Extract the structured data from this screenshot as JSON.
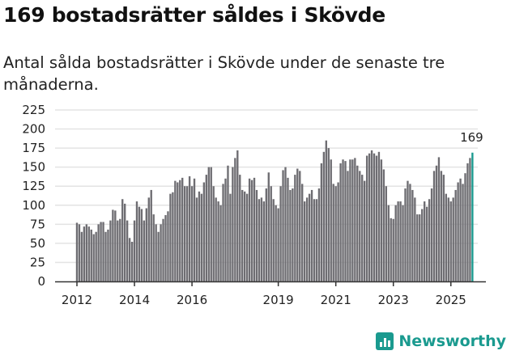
{
  "header": {
    "title": "169 bostadsrätter såldes i Skövde",
    "subtitle": "Antal sålda bostadsrätter i Skövde under de senaste tre månaderna."
  },
  "brand": {
    "name": "Newsworthy"
  },
  "colors": {
    "bar": "#6e6d72",
    "highlight": "#1a9a8f",
    "grid": "#e3e3e3"
  },
  "chart_data": {
    "type": "bar",
    "title": "169 bostadsrätter såldes i Skövde",
    "xlabel": "",
    "ylabel": "",
    "ylim": [
      0,
      225
    ],
    "yticks": [
      0,
      25,
      50,
      75,
      100,
      125,
      150,
      175,
      200,
      225
    ],
    "xticks": [
      {
        "label": "2012",
        "year": 2012
      },
      {
        "label": "2014",
        "year": 2014
      },
      {
        "label": "2016",
        "year": 2016
      },
      {
        "label": "2019",
        "year": 2019
      },
      {
        "label": "2021",
        "year": 2021
      },
      {
        "label": "2023",
        "year": 2023
      },
      {
        "label": "2025",
        "year": 2025
      }
    ],
    "start": "2012-01",
    "frequency": "monthly",
    "annotation": {
      "label": "169",
      "value": 169
    },
    "values": [
      77,
      75,
      65,
      72,
      75,
      72,
      68,
      62,
      65,
      75,
      78,
      78,
      65,
      68,
      80,
      94,
      93,
      80,
      82,
      108,
      102,
      80,
      57,
      52,
      80,
      105,
      98,
      95,
      80,
      96,
      110,
      120,
      88,
      75,
      65,
      75,
      82,
      87,
      92,
      115,
      117,
      132,
      130,
      133,
      136,
      125,
      125,
      138,
      125,
      135,
      110,
      118,
      115,
      130,
      140,
      150,
      150,
      125,
      110,
      105,
      100,
      128,
      135,
      152,
      115,
      150,
      162,
      172,
      140,
      120,
      118,
      115,
      135,
      133,
      136,
      120,
      108,
      110,
      105,
      122,
      143,
      125,
      108,
      100,
      96,
      125,
      146,
      150,
      136,
      120,
      122,
      140,
      148,
      145,
      128,
      105,
      110,
      115,
      120,
      108,
      108,
      122,
      155,
      170,
      185,
      175,
      160,
      128,
      125,
      130,
      155,
      160,
      158,
      145,
      160,
      160,
      162,
      152,
      145,
      140,
      132,
      165,
      168,
      172,
      168,
      165,
      170,
      160,
      147,
      125,
      100,
      83,
      82,
      100,
      105,
      105,
      100,
      122,
      132,
      128,
      120,
      110,
      88,
      88,
      95,
      105,
      98,
      108,
      122,
      145,
      152,
      163,
      145,
      140,
      115,
      110,
      105,
      110,
      120,
      130,
      135,
      128,
      142,
      155,
      162,
      169
    ]
  }
}
